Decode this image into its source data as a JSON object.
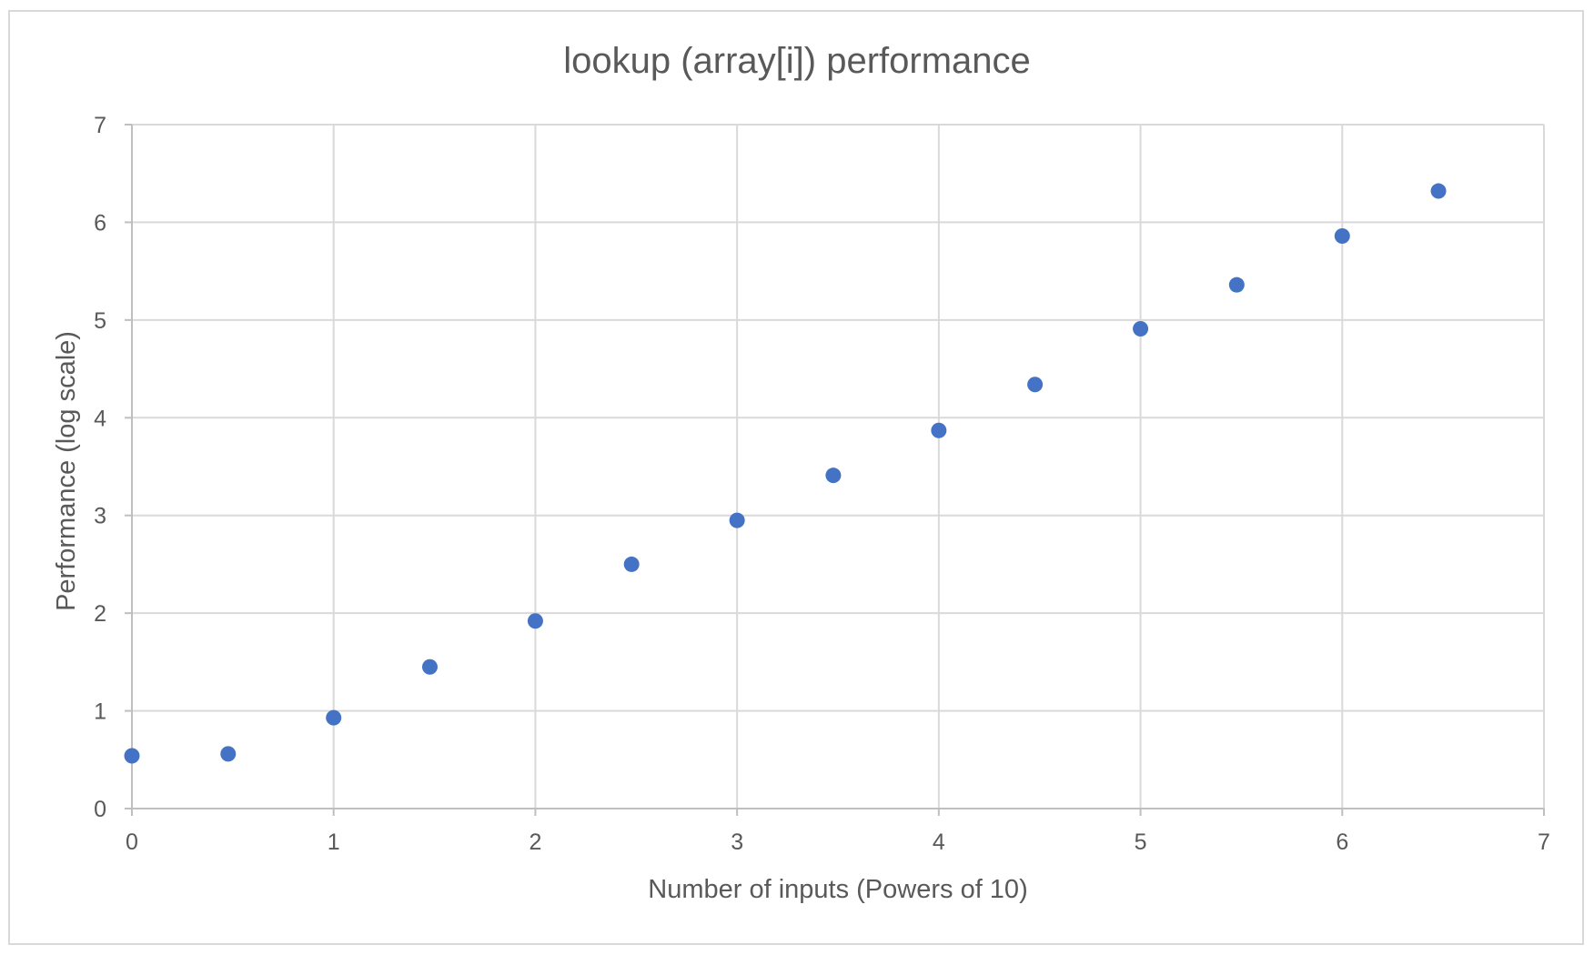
{
  "chart_data": {
    "type": "scatter",
    "title": "lookup (array[i]) performance",
    "xlabel": "Number of inputs (Powers of 10)",
    "ylabel": "Performance (log scale)",
    "xlim": [
      0,
      7
    ],
    "ylim": [
      0,
      7
    ],
    "x_ticks": [
      "0",
      "1",
      "2",
      "3",
      "4",
      "5",
      "6",
      "7"
    ],
    "y_ticks": [
      "0",
      "1",
      "2",
      "3",
      "4",
      "5",
      "6",
      "7"
    ],
    "grid": true,
    "legend": "none",
    "marker_color": "#4472c4",
    "grid_color": "#d9d9d9",
    "axis_color": "#bfbfbf",
    "text_color": "#595959",
    "x": [
      0,
      0.477,
      1,
      1.477,
      2,
      2.477,
      3,
      3.477,
      4,
      4.477,
      5,
      5.477,
      6,
      6.477
    ],
    "y": [
      0.54,
      0.56,
      0.93,
      1.45,
      1.92,
      2.5,
      2.95,
      3.41,
      3.87,
      4.34,
      4.91,
      5.36,
      5.86,
      6.32
    ]
  }
}
